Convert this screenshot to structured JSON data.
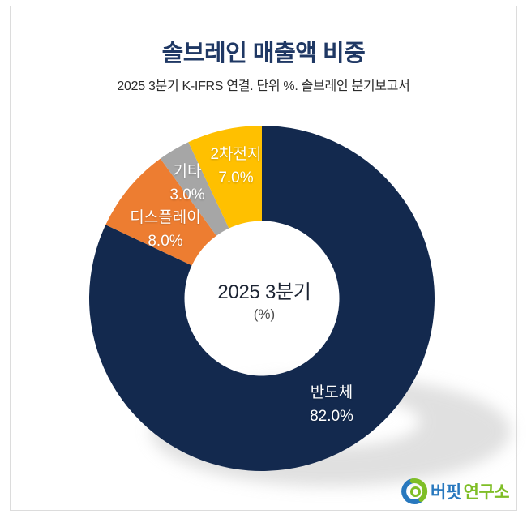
{
  "header": {
    "title": "솔브레인 매출액 비중",
    "subtitle": "2025 3분기 K-IFRS 연결. 단위 %. 솔브레인 분기보고서"
  },
  "chart_data": {
    "type": "pie",
    "donut": true,
    "title": "솔브레인 매출액 비중",
    "subtitle": "2025 3분기 K-IFRS 연결. 단위 %. 솔브레인 분기보고서",
    "center_label": "2025 3분기",
    "center_unit": "(%)",
    "categories": [
      "반도체",
      "디스플레이",
      "기타",
      "2차전지"
    ],
    "values": [
      82.0,
      8.0,
      3.0,
      7.0
    ],
    "value_labels": [
      "82.0%",
      "8.0%",
      "3.0%",
      "7.0%"
    ],
    "colors": [
      "#13294E",
      "#ED7D31",
      "#A6A6A6",
      "#FFC000"
    ],
    "start_angle_deg": 0,
    "direction": "clockwise",
    "inner_radius_ratio": 0.45,
    "legend_position": "none",
    "labels_on_slices": true,
    "label_color": "#ffffff"
  },
  "logo": {
    "text_primary": "버핏",
    "text_secondary": "연구소",
    "blue": "#2878BE",
    "green": "#7FBE26"
  },
  "palette": {
    "title_navy": "#1F3864",
    "subtitle_gray": "#2b2b2b",
    "background": "#ffffff",
    "border": "#dcdcdc",
    "shadow": "#c7c7c7"
  }
}
